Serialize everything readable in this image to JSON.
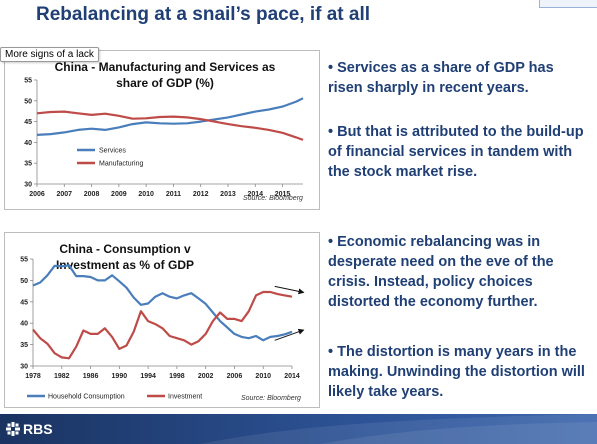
{
  "slide": {
    "title": "Rebalancing at a snail’s pace, if at all",
    "tooltip": "More signs of a lack"
  },
  "bullets": [
    "• Services as a share of GDP has risen sharply in recent years.",
    "• But that is attributed to the build-up of financial services in tandem with the stock market rise.",
    "• Economic rebalancing was in desperate need on the eve of the crisis. Instead, policy choices distorted the economy further.",
    "• The distortion is many years in the making. Unwinding the distortion will likely take years."
  ],
  "footer": {
    "logo": "RBS"
  },
  "colors": {
    "blue": "#4a7ebb",
    "red": "#be4b48",
    "title": "#1f3f75"
  },
  "chart_data": [
    {
      "type": "line",
      "title": "China - Manufacturing and Services as share of GDP (%)",
      "source": "Source: Bloomberg",
      "ylim": [
        30,
        55
      ],
      "yticks": [
        30,
        35,
        40,
        45,
        50,
        55
      ],
      "xlim": [
        2006,
        2015.75
      ],
      "xticks": [
        "2006",
        "2007",
        "2008",
        "2009",
        "2010",
        "2011",
        "2012",
        "2013",
        "2014",
        "2015"
      ],
      "grid": false,
      "legend": "bottom-left",
      "series": [
        {
          "name": "Services",
          "color": "#4a7ebb",
          "x": [
            2006,
            2006.5,
            2007,
            2007.5,
            2008,
            2008.5,
            2009,
            2009.5,
            2010,
            2010.5,
            2011,
            2011.5,
            2012,
            2012.5,
            2013,
            2013.5,
            2014,
            2014.5,
            2015,
            2015.5,
            2015.75
          ],
          "values": [
            41.8,
            42.0,
            42.4,
            43.0,
            43.3,
            43.0,
            43.6,
            44.4,
            44.8,
            44.6,
            44.5,
            44.6,
            45.0,
            45.5,
            46.0,
            46.7,
            47.4,
            47.9,
            48.6,
            49.8,
            50.6
          ]
        },
        {
          "name": "Manufacturing",
          "color": "#be4b48",
          "x": [
            2006,
            2006.5,
            2007,
            2007.5,
            2008,
            2008.5,
            2009,
            2009.5,
            2010,
            2010.5,
            2011,
            2011.5,
            2012,
            2012.5,
            2013,
            2013.5,
            2014,
            2014.5,
            2015,
            2015.5,
            2015.75
          ],
          "values": [
            47.0,
            47.3,
            47.4,
            47.0,
            46.6,
            46.9,
            46.4,
            45.7,
            45.8,
            46.1,
            46.2,
            46.0,
            45.6,
            45.0,
            44.4,
            43.9,
            43.5,
            43.0,
            42.3,
            41.2,
            40.6
          ]
        }
      ]
    },
    {
      "type": "line",
      "title": "China - Consumption v Investment as % of GDP",
      "source": "Source: Bloomberg",
      "ylim": [
        30,
        55
      ],
      "yticks": [
        30,
        35,
        40,
        45,
        50,
        55
      ],
      "xlim": [
        1978,
        2014
      ],
      "xticks": [
        "1978",
        "1982",
        "1986",
        "1990",
        "1994",
        "1998",
        "2002",
        "2006",
        "2010",
        "2014"
      ],
      "grid": false,
      "legend": "bottom-left",
      "annotations": "arrows pointing right at latest values",
      "series": [
        {
          "name": "Household Consumption",
          "color": "#4a7ebb",
          "x": [
            1978,
            1979,
            1980,
            1981,
            1982,
            1983,
            1984,
            1985,
            1986,
            1987,
            1988,
            1989,
            1990,
            1991,
            1992,
            1993,
            1994,
            1995,
            1996,
            1997,
            1998,
            1999,
            2000,
            2001,
            2002,
            2003,
            2004,
            2005,
            2006,
            2007,
            2008,
            2009,
            2010,
            2011,
            2012,
            2013,
            2014
          ],
          "values": [
            48.8,
            49.5,
            51.2,
            53.4,
            53.3,
            53.5,
            51.0,
            51.0,
            50.8,
            50.0,
            50.0,
            51.2,
            49.8,
            48.3,
            46.0,
            44.3,
            44.6,
            46.2,
            47.0,
            46.2,
            45.8,
            46.5,
            47.0,
            45.8,
            44.5,
            42.5,
            40.5,
            39.0,
            37.5,
            36.8,
            36.5,
            37.0,
            36.0,
            36.8,
            37.0,
            37.4,
            38.0
          ]
        },
        {
          "name": "Investment",
          "color": "#be4b48",
          "x": [
            1978,
            1979,
            1980,
            1981,
            1982,
            1983,
            1984,
            1985,
            1986,
            1987,
            1988,
            1989,
            1990,
            1991,
            1992,
            1993,
            1994,
            1995,
            1996,
            1997,
            1998,
            1999,
            2000,
            2001,
            2002,
            2003,
            2004,
            2005,
            2006,
            2007,
            2008,
            2009,
            2010,
            2011,
            2012,
            2013,
            2014
          ],
          "values": [
            38.5,
            36.5,
            35.2,
            33.0,
            32.0,
            31.8,
            34.5,
            38.3,
            37.5,
            37.5,
            38.8,
            36.8,
            34.0,
            34.8,
            38.0,
            42.8,
            40.5,
            39.8,
            38.8,
            37.0,
            36.5,
            36.0,
            35.0,
            35.8,
            37.5,
            40.5,
            42.5,
            41.0,
            41.0,
            40.5,
            42.8,
            46.5,
            47.3,
            47.3,
            46.8,
            46.5,
            46.2
          ]
        }
      ]
    }
  ]
}
